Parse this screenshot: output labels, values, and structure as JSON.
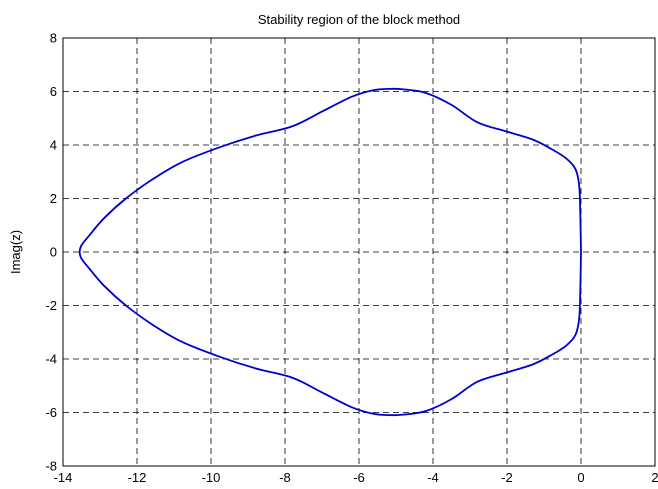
{
  "chart_data": {
    "type": "line",
    "title": "Stability region of the block method",
    "xlabel": "",
    "ylabel": "Imag(z)",
    "xlim": [
      -14,
      2
    ],
    "ylim": [
      -8,
      8
    ],
    "xticks": [
      "-14",
      "-12",
      "-10",
      "-8",
      "-6",
      "-4",
      "-2",
      "0",
      "2"
    ],
    "yticks": [
      "-8",
      "-6",
      "-4",
      "-2",
      "0",
      "2",
      "4",
      "6",
      "8"
    ],
    "grid": true,
    "series": [
      {
        "color": "#0000cc",
        "x": [
          0,
          -0.02,
          -0.05,
          -0.15,
          -0.4,
          -0.8,
          -1.3,
          -2.0,
          -2.8,
          -3.5,
          -4.2,
          -4.8,
          -5.1,
          -5.6,
          -6.2,
          -7.0,
          -7.8,
          -8.8,
          -9.8,
          -10.8,
          -11.6,
          -12.3,
          -12.9,
          -13.3,
          -13.5,
          -13.55,
          -13.5,
          -13.3,
          -12.9,
          -12.3,
          -11.6,
          -10.8,
          -9.8,
          -8.8,
          -7.8,
          -7.0,
          -6.2,
          -5.6,
          -5.1,
          -4.8,
          -4.2,
          -3.5,
          -2.8,
          -2.0,
          -1.3,
          -0.8,
          -0.4,
          -0.15,
          -0.05,
          -0.02,
          0
        ],
        "y": [
          0,
          1.5,
          2.5,
          3.1,
          3.5,
          3.85,
          4.2,
          4.5,
          4.85,
          5.5,
          5.95,
          6.08,
          6.1,
          6.05,
          5.8,
          5.25,
          4.7,
          4.35,
          3.9,
          3.35,
          2.7,
          2.0,
          1.25,
          0.6,
          0.25,
          0,
          -0.25,
          -0.6,
          -1.25,
          -2.0,
          -2.7,
          -3.35,
          -3.9,
          -4.35,
          -4.7,
          -5.25,
          -5.8,
          -6.05,
          -6.1,
          -6.08,
          -5.95,
          -5.5,
          -4.85,
          -4.5,
          -4.2,
          -3.85,
          -3.5,
          -3.1,
          -2.5,
          -1.5,
          0
        ]
      }
    ]
  }
}
